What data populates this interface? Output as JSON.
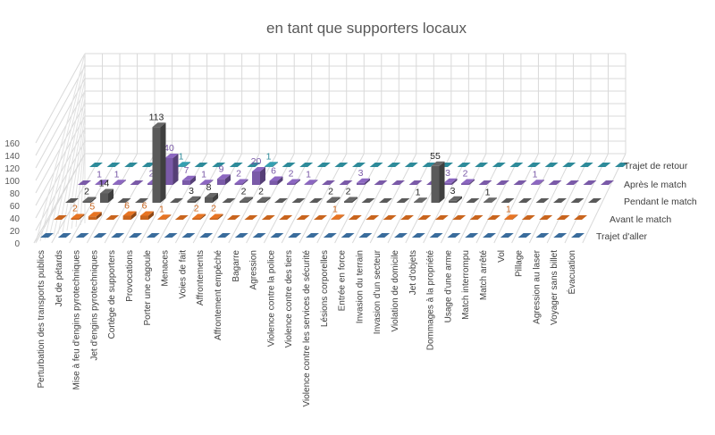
{
  "chart_data": {
    "type": "bar",
    "subtype": "3d-column",
    "title": "en tant que supporters locaux",
    "zlim": [
      0,
      160
    ],
    "ticks": [
      0,
      20,
      40,
      60,
      80,
      100,
      120,
      140,
      160
    ],
    "grid": true,
    "legend_placement": "right",
    "categories": [
      "Perturbation des transports publics",
      "Jet de pétards",
      "Mise à feu d'engins pyrotechniques",
      "Jet d'engins pyrotechniques",
      "Cortège de supporters",
      "Provocations",
      "Porter une cagoule",
      "Menaces",
      "Voies de fait",
      "Affrontements",
      "Affrontement empêché",
      "Bagarre",
      "Agression",
      "Violence contre la police",
      "Violence contre des tiers",
      "Violence contre les services de sécurité",
      "Lésions corporelles",
      "Entrée en force",
      "Invasion du terrain",
      "Invasion d'un secteur",
      "Violation de domicile",
      "Jet d'objets",
      "Dommages à la propriété",
      "Usage d'une arme",
      "Match interrompu",
      "Match arrêté",
      "Vol",
      "Pillage",
      "Agression au laser",
      "Voyager sans billet",
      "Évacuation"
    ],
    "series": [
      {
        "name": "Trajet d'aller",
        "color": "#3a6c9c",
        "values": [
          0,
          0,
          0,
          0,
          0,
          0,
          0,
          0,
          0,
          0,
          0,
          0,
          0,
          0,
          0,
          0,
          0,
          0,
          0,
          0,
          0,
          0,
          0,
          0,
          0,
          0,
          0,
          0,
          0,
          0,
          0
        ]
      },
      {
        "name": "Avant le match",
        "color": "#c9651e",
        "values": [
          0,
          2,
          5,
          0,
          6,
          6,
          1,
          0,
          2,
          2,
          0,
          0,
          0,
          0,
          0,
          0,
          1,
          0,
          0,
          0,
          0,
          0,
          0,
          0,
          0,
          0,
          1,
          0,
          0,
          0,
          0
        ]
      },
      {
        "name": "Pendant le match",
        "color": "#5a5a5a",
        "values": [
          0,
          2,
          14,
          0,
          0,
          113,
          0,
          3,
          8,
          0,
          2,
          2,
          0,
          0,
          0,
          2,
          2,
          0,
          0,
          0,
          1,
          55,
          3,
          0,
          1,
          0,
          0,
          0,
          0,
          0,
          0
        ]
      },
      {
        "name": "Après le match",
        "color": "#7a5aa8",
        "values": [
          0,
          1,
          1,
          0,
          2,
          40,
          7,
          1,
          9,
          2,
          20,
          6,
          2,
          1,
          0,
          0,
          3,
          0,
          0,
          0,
          0,
          3,
          2,
          0,
          0,
          0,
          1,
          0,
          0,
          0,
          0
        ]
      },
      {
        "name": "Trajet de retour",
        "color": "#2e8b9a",
        "values": [
          0,
          0,
          0,
          0,
          0,
          1,
          0,
          0,
          0,
          0,
          1,
          0,
          0,
          0,
          0,
          0,
          0,
          0,
          0,
          0,
          0,
          0,
          0,
          0,
          0,
          0,
          0,
          0,
          0,
          0,
          0
        ]
      }
    ]
  }
}
